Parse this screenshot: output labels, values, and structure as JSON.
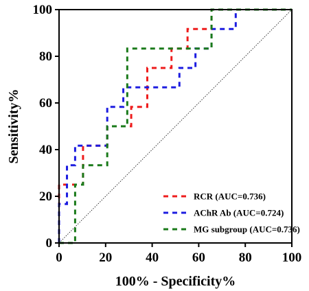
{
  "chart_data": {
    "type": "line",
    "xlabel": "100% - Specificity%",
    "ylabel": "Sensitivity%",
    "xlim": [
      0,
      100
    ],
    "ylim": [
      0,
      100
    ],
    "x_ticks": [
      "0",
      "20",
      "40",
      "60",
      "80",
      "100"
    ],
    "y_ticks": [
      "0",
      "20",
      "40",
      "60",
      "80",
      "100"
    ],
    "grid": false,
    "legend_position": "bottom-right",
    "reference_line": {
      "from": [
        0,
        0
      ],
      "to": [
        100,
        100
      ],
      "style": "dotted"
    },
    "series": [
      {
        "name": "RCR (AUC=0.736)",
        "color": "#ee1c1c",
        "x": [
          0,
          0,
          10.3,
          10.3,
          20.7,
          20.7,
          31,
          31,
          37.9,
          37.9,
          48.3,
          48.3,
          55.2,
          55.2,
          65.5,
          65.5,
          100
        ],
        "y": [
          0,
          25,
          25,
          41.7,
          41.7,
          50,
          50,
          58.3,
          58.3,
          75,
          75,
          83.3,
          83.3,
          91.7,
          91.7,
          100,
          100
        ]
      },
      {
        "name": "AChR Ab (AUC=0.724)",
        "color": "#1c1ce0",
        "x": [
          0,
          0,
          3.4,
          3.4,
          6.9,
          6.9,
          20.7,
          20.7,
          27.6,
          27.6,
          51.7,
          51.7,
          58.6,
          58.6,
          65.5,
          65.5,
          75.9,
          75.9,
          100
        ],
        "y": [
          0,
          16.7,
          16.7,
          33.3,
          33.3,
          41.7,
          41.7,
          58.3,
          58.3,
          66.7,
          66.7,
          75,
          75,
          83.3,
          83.3,
          91.7,
          91.7,
          100,
          100
        ]
      },
      {
        "name": "MG subgroup (AUC=0.736)",
        "color": "#1a7a1a",
        "x": [
          0,
          6.9,
          6.9,
          10.3,
          10.3,
          20.7,
          20.7,
          29.3,
          29.3,
          65.5,
          65.5,
          100
        ],
        "y": [
          0,
          0,
          25,
          25,
          33.3,
          33.3,
          50,
          50,
          83.3,
          83.3,
          100,
          100
        ]
      }
    ]
  }
}
